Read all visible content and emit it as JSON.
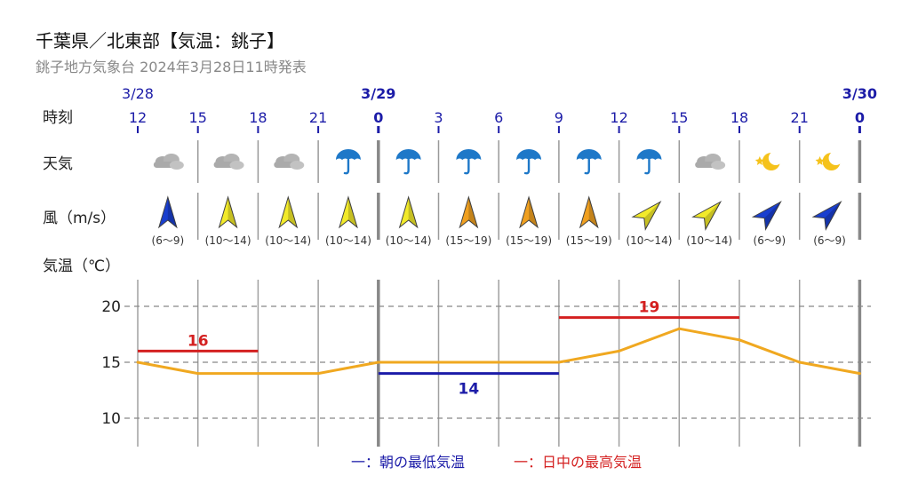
{
  "header": {
    "title": "千葉県／北東部【気温：銚子】",
    "subtitle": "銚子地方気象台 2024年3月28日11時発表"
  },
  "rows": {
    "time": "時刻",
    "weather": "天気",
    "wind": "風（m/s）",
    "temp": "気温（℃）"
  },
  "dates": [
    {
      "label": "3/28",
      "col": 0
    },
    {
      "label": "3/29",
      "col": 4
    },
    {
      "label": "3/30",
      "col": 12
    }
  ],
  "hours": [
    "12",
    "15",
    "18",
    "21",
    "0",
    "3",
    "6",
    "9",
    "12",
    "15",
    "18",
    "21",
    "0"
  ],
  "day_boundaries": [
    4,
    12
  ],
  "weather": [
    "cloudy-icon",
    "cloudy-icon",
    "cloudy-icon",
    "rain-icon",
    "rain-icon",
    "rain-icon",
    "rain-icon",
    "rain-icon",
    "rain-icon",
    "cloudy-icon",
    "clear-night-icon",
    "clear-night-icon"
  ],
  "wind": [
    {
      "range": "(6〜9)",
      "dir_deg": 0,
      "color": "#1a3fcf"
    },
    {
      "range": "(10〜14)",
      "dir_deg": 0,
      "color": "#f2ea2a"
    },
    {
      "range": "(10〜14)",
      "dir_deg": 0,
      "color": "#f2ea2a"
    },
    {
      "range": "(10〜14)",
      "dir_deg": 0,
      "color": "#f2ea2a"
    },
    {
      "range": "(10〜14)",
      "dir_deg": 0,
      "color": "#f2ea2a"
    },
    {
      "range": "(15〜19)",
      "dir_deg": 0,
      "color": "#f0a020"
    },
    {
      "range": "(15〜19)",
      "dir_deg": 0,
      "color": "#f0a020"
    },
    {
      "range": "(15〜19)",
      "dir_deg": 0,
      "color": "#f0a020"
    },
    {
      "range": "(10〜14)",
      "dir_deg": 45,
      "color": "#f2ea2a"
    },
    {
      "range": "(10〜14)",
      "dir_deg": 45,
      "color": "#f2ea2a"
    },
    {
      "range": "(6〜9)",
      "dir_deg": 45,
      "color": "#1a3fcf"
    },
    {
      "range": "(6〜9)",
      "dir_deg": 45,
      "color": "#1a3fcf"
    }
  ],
  "chart_data": {
    "type": "line",
    "x": [
      "3/28 12",
      "3/28 15",
      "3/28 18",
      "3/28 21",
      "3/29 0",
      "3/29 3",
      "3/29 6",
      "3/29 9",
      "3/29 12",
      "3/29 15",
      "3/29 18",
      "3/29 21",
      "3/30 0"
    ],
    "series": [
      {
        "values": [
          15,
          14,
          14,
          14,
          15,
          15,
          15,
          15,
          16,
          18,
          17,
          15,
          14
        ],
        "color": "#f0a820"
      }
    ],
    "ylim": [
      8.5,
      22.5
    ],
    "yticks": [
      10,
      15,
      20
    ],
    "grid": true,
    "min_max": [
      {
        "label": "16",
        "value": 16,
        "from": 0,
        "to": 2,
        "color": "#d42020"
      },
      {
        "label": "14",
        "value": 14,
        "from": 4,
        "to": 7,
        "color": "#1c1ca8"
      },
      {
        "label": "19",
        "value": 19,
        "from": 7,
        "to": 10,
        "color": "#d42020"
      }
    ],
    "legend": [
      {
        "text": "一：朝の最低気温",
        "color": "#1c1ca8"
      },
      {
        "text": "一：日中の最高気温",
        "color": "#d42020"
      }
    ]
  }
}
